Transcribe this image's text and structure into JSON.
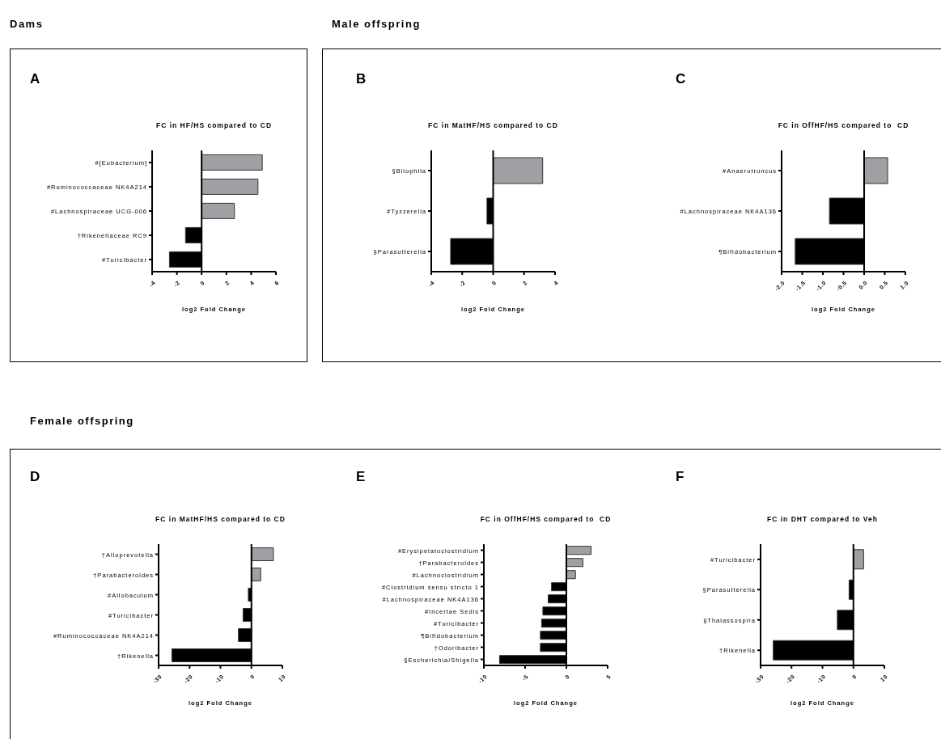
{
  "chart_data": [
    {
      "type": "bar",
      "orientation": "horizontal",
      "title": "FC in HF/HS compared to CD",
      "xlabel": "log2 Fold Change",
      "annotations": [
        "A",
        "Dams"
      ],
      "categories": [
        "#[Eubacterium]",
        "#Ruminococcaceae NK4A214",
        "#Lachnospiraceae UCG-006",
        "†Rikenellaceae RC9",
        "#Turicibacter"
      ],
      "values": [
        4.9,
        4.55,
        2.65,
        -1.3,
        -2.6
      ],
      "colors": [
        "#a0a0a4",
        "#a0a0a4",
        "#a0a0a4",
        "#000000",
        "#000000"
      ],
      "xlim": [
        -4,
        6
      ],
      "xticks": [
        -4,
        -2,
        0,
        2,
        4,
        6
      ],
      "ref_lines": [
        {
          "axis": "x",
          "value": 0
        }
      ]
    },
    {
      "type": "bar",
      "orientation": "horizontal",
      "title": "FC in MatHF/HS compared to CD",
      "xlabel": "log2 Fold Change",
      "annotations": [
        "B",
        "Male offspring"
      ],
      "categories": [
        "§Bilophila",
        "#Tyzzerella",
        "§Parasutterella"
      ],
      "values": [
        3.2,
        -0.4,
        -2.75
      ],
      "colors": [
        "#a0a0a4",
        "#000000",
        "#000000"
      ],
      "xlim": [
        -4,
        4
      ],
      "xticks": [
        -4,
        -2,
        0,
        2,
        4
      ],
      "ref_lines": [
        {
          "axis": "x",
          "value": 0
        }
      ]
    },
    {
      "type": "bar",
      "orientation": "horizontal",
      "title": "FC in OffHF/HS compared to  CD",
      "xlabel": "log2 Fold Change",
      "annotations": [
        "C"
      ],
      "categories": [
        "#Anaerotruncus",
        "#Lachnospiraceae NK4A136",
        "¶Bifidobacterium"
      ],
      "values": [
        0.57,
        -0.84,
        -1.67
      ],
      "colors": [
        "#a0a0a4",
        "#000000",
        "#000000"
      ],
      "xlim": [
        -2,
        1
      ],
      "xticks": [
        {
          "value": -2,
          "label": "-2.0"
        },
        {
          "value": -1.5,
          "label": "-1.5"
        },
        {
          "value": -1,
          "label": "-1.0"
        },
        {
          "value": -0.5,
          "label": "-0.5"
        },
        {
          "value": 0,
          "label": "0.0"
        },
        {
          "value": 0.5,
          "label": "0.5"
        },
        {
          "value": 1,
          "label": "1.0"
        }
      ],
      "ref_lines": [
        {
          "axis": "x",
          "value": 0
        }
      ]
    },
    {
      "type": "bar",
      "orientation": "horizontal",
      "title": "FC in MatHF/HS compared to CD",
      "xlabel": "log2 Fold Change",
      "annotations": [
        "D",
        "Female offspring"
      ],
      "categories": [
        "†Alloprevotella",
        "†Parabacteroides",
        "#Allobaculum",
        "#Turicibacter",
        "#Ruminococcaceae NK4A214",
        "†Rikenella"
      ],
      "values": [
        7.1,
        3,
        -1,
        -2.7,
        -4.2,
        -25.7
      ],
      "colors": [
        "#a0a0a4",
        "#a0a0a4",
        "#000000",
        "#000000",
        "#000000",
        "#000000"
      ],
      "xlim": [
        -30,
        10
      ],
      "xticks": [
        -30,
        -20,
        -10,
        0,
        10
      ],
      "ref_lines": [
        {
          "axis": "x",
          "value": 0
        }
      ]
    },
    {
      "type": "bar",
      "orientation": "horizontal",
      "title": "FC in OffHF/HS compared to  CD",
      "xlabel": "log2 Fold Change",
      "annotations": [
        "E"
      ],
      "categories": [
        "#Erysipelatoclostridium",
        "†Parabacteroides",
        "#Lachnoclostridium",
        "#Clostridium sensu stricto 1",
        "#Lachnospiraceae NK4A136",
        "#Incertae Sedis",
        "#Turicibacter",
        "¶Bifidobacterium",
        "†Odoribacter",
        "§Escherichia/Shigella"
      ],
      "values": [
        3,
        2,
        1.1,
        -1.8,
        -2.2,
        -2.85,
        -3,
        -3.15,
        -3.15,
        -8.1
      ],
      "colors": [
        "#a0a0a4",
        "#a0a0a4",
        "#a0a0a4",
        "#000000",
        "#000000",
        "#000000",
        "#000000",
        "#000000",
        "#000000",
        "#000000"
      ],
      "xlim": [
        -10,
        5
      ],
      "xticks": [
        -10,
        -5,
        0,
        5
      ],
      "ref_lines": [
        {
          "axis": "x",
          "value": 0
        }
      ]
    },
    {
      "type": "bar",
      "orientation": "horizontal",
      "title": "FC in DHT compared to Veh",
      "xlabel": "log2 Fold Change",
      "annotations": [
        "F"
      ],
      "categories": [
        "#Turicibacter",
        "§Parasutterella",
        "§Thalassospira",
        "†Rikenella"
      ],
      "values": [
        3.3,
        -1.4,
        -5.2,
        -25.9
      ],
      "colors": [
        "#a0a0a4",
        "#000000",
        "#000000",
        "#000000"
      ],
      "xlim": [
        -30,
        10
      ],
      "xticks": [
        -30,
        -20,
        -10,
        0,
        10
      ],
      "ref_lines": [
        {
          "axis": "x",
          "value": 0
        }
      ]
    }
  ]
}
